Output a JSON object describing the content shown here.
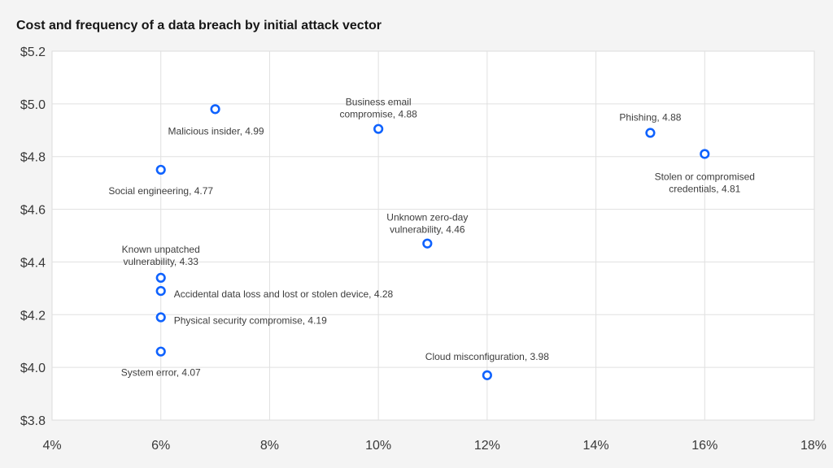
{
  "chart_data": {
    "type": "scatter",
    "title": "Cost and frequency of a data breach by initial attack vector",
    "xlabel": "",
    "ylabel": "",
    "xlim": [
      4,
      18
    ],
    "ylim": [
      3.8,
      5.2
    ],
    "x_ticks": [
      "4%",
      "6%",
      "8%",
      "10%",
      "12%",
      "14%",
      "16%",
      "18%"
    ],
    "y_ticks": [
      "$3.8",
      "$4.0",
      "$4.2",
      "$4.4",
      "$4.6",
      "$4.8",
      "$5.0",
      "$5.2"
    ],
    "grid": true,
    "marker_color": "#0f62fe",
    "points": [
      {
        "label": [
          "Malicious insider, 4.99"
        ],
        "x": 7,
        "y": 4.99
      },
      {
        "label": [
          "Business email",
          "compromise, 4.88"
        ],
        "x": 10,
        "y": 4.88
      },
      {
        "label": [
          "Phishing, 4.88"
        ],
        "x": 15,
        "y": 4.88
      },
      {
        "label": [
          "Stolen or compromised",
          "credentials, 4.81"
        ],
        "x": 16,
        "y": 4.81
      },
      {
        "label": [
          "Social engineering, 4.77"
        ],
        "x": 6,
        "y": 4.77
      },
      {
        "label": [
          "Unknown zero-day",
          "vulnerability, 4.46"
        ],
        "x": 10.9,
        "y": 4.46
      },
      {
        "label": [
          "Known unpatched",
          "vulnerability, 4.33"
        ],
        "x": 6,
        "y": 4.33
      },
      {
        "label": [
          "Accidental data loss and lost or stolen device, 4.28"
        ],
        "x": 6,
        "y": 4.28
      },
      {
        "label": [
          "Physical security compromise, 4.19"
        ],
        "x": 6,
        "y": 4.19
      },
      {
        "label": [
          "System error, 4.07"
        ],
        "x": 6,
        "y": 4.07
      },
      {
        "label": [
          "Cloud misconfiguration, 3.98"
        ],
        "x": 12,
        "y": 3.98
      }
    ]
  }
}
